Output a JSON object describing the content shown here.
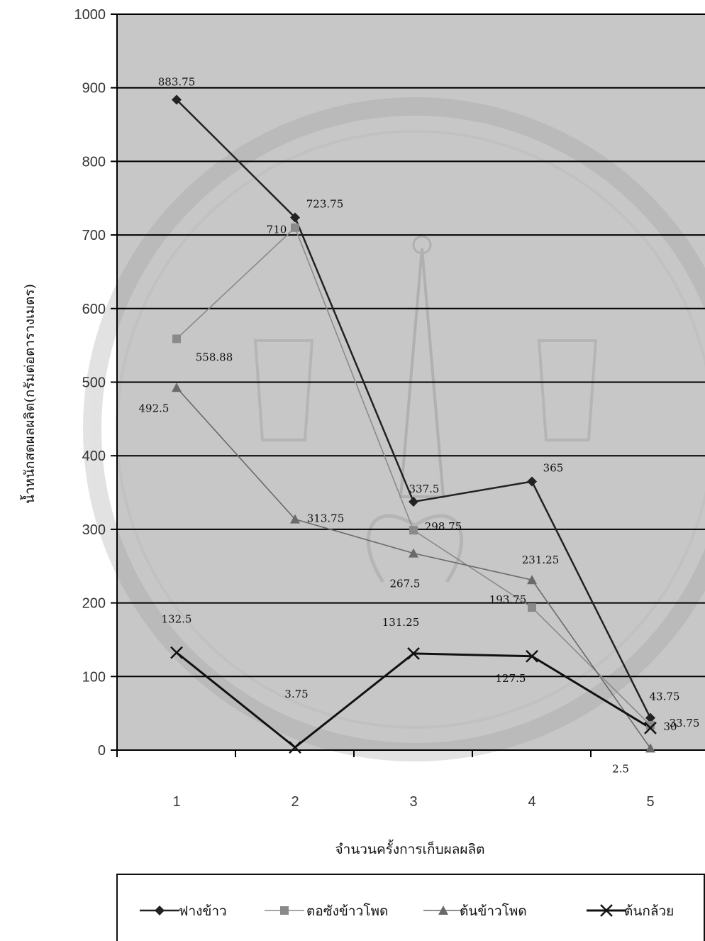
{
  "chart_data": {
    "type": "line",
    "title": "",
    "xlabel": "จำนวนครั้งการเก็บผลผลิต",
    "ylabel": "น้ำหนักสดผลผลิต(กรัมต่อตารางเมตร)",
    "categories": [
      "1",
      "2",
      "3",
      "4",
      "5"
    ],
    "ylim": [
      0,
      1000
    ],
    "yticks": [
      0,
      100,
      200,
      300,
      400,
      500,
      600,
      700,
      800,
      900,
      1000
    ],
    "grid": true,
    "legend_position": "bottom",
    "series": [
      {
        "name": "ฟางข้าว",
        "marker": "diamond",
        "color": "#222222",
        "values": [
          883.75,
          723.75,
          337.5,
          365,
          43.75
        ],
        "labels": [
          "883.75",
          "723.75",
          "337.5",
          "365",
          "43.75"
        ]
      },
      {
        "name": "ตอซังข้าวโพด",
        "marker": "square",
        "color": "#8a8a8a",
        "values": [
          558.88,
          710,
          298.75,
          193.75,
          33.75
        ],
        "labels": [
          "558.88",
          "710",
          "298.75",
          "193.75",
          "33.75"
        ]
      },
      {
        "name": "ต้นข้าวโพด",
        "marker": "triangle",
        "color": "#6a6a6a",
        "values": [
          492.5,
          313.75,
          267.5,
          231.25,
          2.5
        ],
        "labels": [
          "492.5",
          "313.75",
          "267.5",
          "231.25",
          "2.5"
        ]
      },
      {
        "name": "ต้นกล้วย",
        "marker": "x",
        "color": "#111111",
        "values": [
          132.5,
          3.75,
          131.25,
          127.5,
          30
        ],
        "labels": [
          "132.5",
          "3.75",
          "131.25",
          "127.5",
          "30"
        ]
      }
    ]
  }
}
